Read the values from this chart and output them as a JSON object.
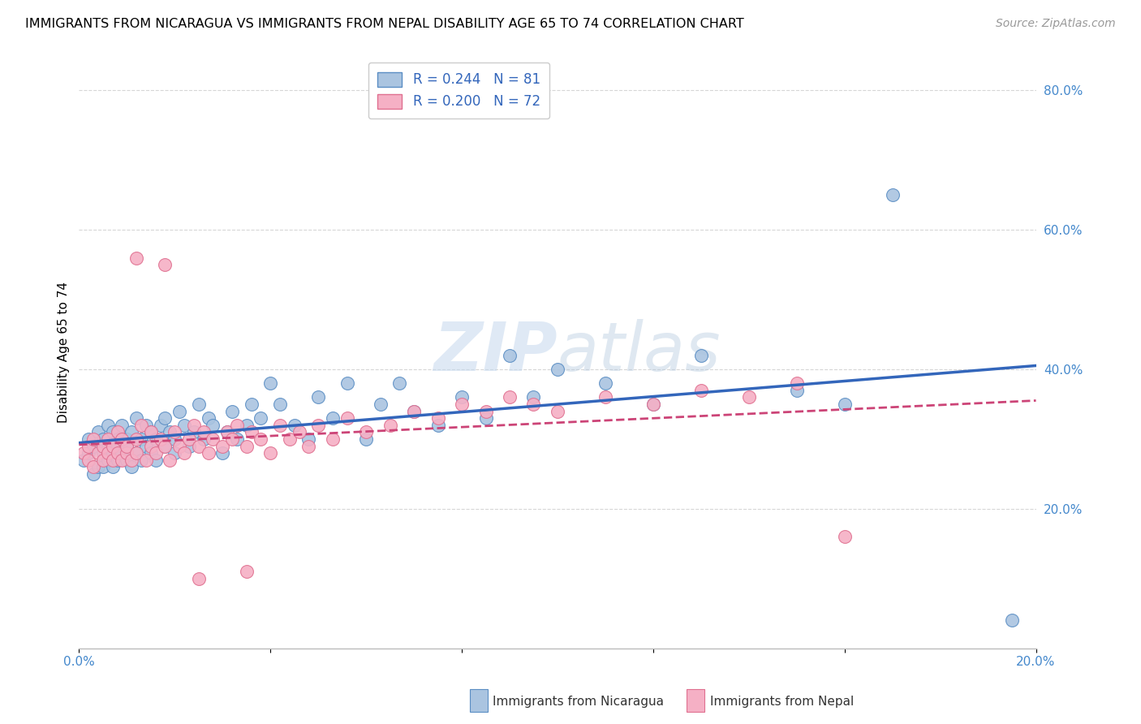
{
  "title": "IMMIGRANTS FROM NICARAGUA VS IMMIGRANTS FROM NEPAL DISABILITY AGE 65 TO 74 CORRELATION CHART",
  "source": "Source: ZipAtlas.com",
  "ylabel": "Disability Age 65 to 74",
  "xlim": [
    0.0,
    0.2
  ],
  "ylim": [
    0.0,
    0.85
  ],
  "xticks": [
    0.0,
    0.04,
    0.08,
    0.12,
    0.16,
    0.2
  ],
  "xticklabels": [
    "0.0%",
    "",
    "",
    "",
    "",
    "20.0%"
  ],
  "yticks": [
    0.2,
    0.4,
    0.6,
    0.8
  ],
  "yticklabels": [
    "20.0%",
    "40.0%",
    "60.0%",
    "80.0%"
  ],
  "nicaragua_color": "#aac4e0",
  "nicaragua_edge_color": "#5b8ec4",
  "nicaragua_line_color": "#3366bb",
  "nepal_color": "#f5b0c5",
  "nepal_edge_color": "#e07090",
  "nepal_line_color": "#cc4477",
  "nicaragua_R": 0.244,
  "nicaragua_N": 81,
  "nepal_R": 0.2,
  "nepal_N": 72,
  "watermark": "ZIPatlas",
  "nicaragua_x": [
    0.001,
    0.002,
    0.002,
    0.003,
    0.003,
    0.004,
    0.004,
    0.005,
    0.005,
    0.005,
    0.006,
    0.006,
    0.006,
    0.007,
    0.007,
    0.007,
    0.008,
    0.008,
    0.008,
    0.009,
    0.009,
    0.01,
    0.01,
    0.01,
    0.011,
    0.011,
    0.012,
    0.012,
    0.013,
    0.013,
    0.014,
    0.014,
    0.015,
    0.015,
    0.016,
    0.016,
    0.017,
    0.018,
    0.018,
    0.019,
    0.02,
    0.02,
    0.021,
    0.022,
    0.023,
    0.024,
    0.025,
    0.026,
    0.027,
    0.028,
    0.03,
    0.031,
    0.032,
    0.033,
    0.035,
    0.036,
    0.038,
    0.04,
    0.042,
    0.045,
    0.048,
    0.05,
    0.053,
    0.056,
    0.06,
    0.063,
    0.067,
    0.07,
    0.075,
    0.08,
    0.085,
    0.09,
    0.095,
    0.1,
    0.11,
    0.12,
    0.13,
    0.15,
    0.16,
    0.17,
    0.195
  ],
  "nicaragua_y": [
    0.27,
    0.28,
    0.3,
    0.25,
    0.29,
    0.26,
    0.31,
    0.28,
    0.3,
    0.26,
    0.27,
    0.29,
    0.32,
    0.26,
    0.28,
    0.31,
    0.27,
    0.3,
    0.29,
    0.28,
    0.32,
    0.27,
    0.3,
    0.29,
    0.26,
    0.31,
    0.28,
    0.33,
    0.3,
    0.27,
    0.29,
    0.32,
    0.28,
    0.31,
    0.3,
    0.27,
    0.32,
    0.29,
    0.33,
    0.31,
    0.28,
    0.3,
    0.34,
    0.32,
    0.29,
    0.31,
    0.35,
    0.3,
    0.33,
    0.32,
    0.28,
    0.31,
    0.34,
    0.3,
    0.32,
    0.35,
    0.33,
    0.38,
    0.35,
    0.32,
    0.3,
    0.36,
    0.33,
    0.38,
    0.3,
    0.35,
    0.38,
    0.34,
    0.32,
    0.36,
    0.33,
    0.42,
    0.36,
    0.4,
    0.38,
    0.35,
    0.42,
    0.37,
    0.35,
    0.65,
    0.04
  ],
  "nepal_x": [
    0.001,
    0.002,
    0.002,
    0.003,
    0.003,
    0.004,
    0.005,
    0.005,
    0.006,
    0.006,
    0.007,
    0.007,
    0.008,
    0.008,
    0.009,
    0.009,
    0.01,
    0.01,
    0.011,
    0.012,
    0.012,
    0.013,
    0.014,
    0.015,
    0.015,
    0.016,
    0.017,
    0.018,
    0.019,
    0.02,
    0.021,
    0.022,
    0.023,
    0.024,
    0.025,
    0.026,
    0.027,
    0.028,
    0.03,
    0.031,
    0.032,
    0.033,
    0.035,
    0.036,
    0.038,
    0.04,
    0.042,
    0.044,
    0.046,
    0.048,
    0.05,
    0.053,
    0.056,
    0.06,
    0.065,
    0.07,
    0.075,
    0.08,
    0.085,
    0.09,
    0.095,
    0.1,
    0.11,
    0.12,
    0.13,
    0.14,
    0.15,
    0.16,
    0.012,
    0.018,
    0.025,
    0.035
  ],
  "nepal_y": [
    0.28,
    0.27,
    0.29,
    0.26,
    0.3,
    0.28,
    0.27,
    0.29,
    0.28,
    0.3,
    0.27,
    0.29,
    0.28,
    0.31,
    0.27,
    0.3,
    0.28,
    0.29,
    0.27,
    0.3,
    0.28,
    0.32,
    0.27,
    0.29,
    0.31,
    0.28,
    0.3,
    0.29,
    0.27,
    0.31,
    0.29,
    0.28,
    0.3,
    0.32,
    0.29,
    0.31,
    0.28,
    0.3,
    0.29,
    0.31,
    0.3,
    0.32,
    0.29,
    0.31,
    0.3,
    0.28,
    0.32,
    0.3,
    0.31,
    0.29,
    0.32,
    0.3,
    0.33,
    0.31,
    0.32,
    0.34,
    0.33,
    0.35,
    0.34,
    0.36,
    0.35,
    0.34,
    0.36,
    0.35,
    0.37,
    0.36,
    0.38,
    0.16,
    0.56,
    0.55,
    0.1,
    0.11
  ]
}
